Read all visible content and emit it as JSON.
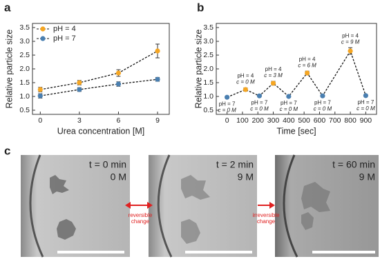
{
  "panel_labels": [
    "a",
    "b",
    "c"
  ],
  "chart_data": [
    {
      "type": "line",
      "xlabel": "Urea concentration [M]",
      "ylabel": "Relative particle size",
      "x": [
        0,
        3,
        6,
        9
      ],
      "xlim": [
        -0.6,
        9.9
      ],
      "xticks": [
        0,
        3,
        6,
        9
      ],
      "ylim": [
        0.5,
        3.5
      ],
      "yticks": [
        0.5,
        {
          "value": 1,
          "label": "1.0"
        },
        1.5,
        {
          "value": 2,
          "label": "2.0"
        },
        2.5,
        {
          "value": 3,
          "label": "3.0"
        },
        3.5
      ],
      "legend": "upper-left",
      "series": [
        {
          "name": "pH = 4",
          "color": "#f5a623",
          "values": [
            1.25,
            1.5,
            1.85,
            2.65
          ],
          "errors": [
            0.08,
            0.08,
            0.12,
            0.25
          ]
        },
        {
          "name": "pH = 7",
          "color": "#4a7fb0",
          "values": [
            1.02,
            1.25,
            1.45,
            1.62
          ],
          "errors": [
            0.08,
            0.07,
            0.08,
            0.07
          ]
        }
      ]
    },
    {
      "type": "line",
      "xlabel": "Time [sec]",
      "ylabel": "Relative particle size",
      "x": [
        0,
        120,
        210,
        300,
        400,
        520,
        620,
        800,
        900
      ],
      "xlim": [
        -70,
        970
      ],
      "xticks": [
        0,
        100,
        200,
        300,
        400,
        500,
        600,
        700,
        800,
        900
      ],
      "ylim": [
        0.5,
        3.5
      ],
      "yticks": [
        0.5,
        {
          "value": 1,
          "label": "1.0"
        },
        1.5,
        {
          "value": 2,
          "label": "2.0"
        },
        2.5,
        {
          "value": 3,
          "label": "3.0"
        },
        3.5
      ],
      "series": [
        {
          "values": [
            0.97,
            1.25,
            1.02,
            1.48,
            1.0,
            1.85,
            1.02,
            2.65,
            1.03
          ],
          "errors": [
            0.03,
            0.06,
            0.03,
            0.07,
            0.03,
            0.07,
            0.03,
            0.12,
            0.03
          ],
          "colors": [
            "#4a7fb0",
            "#f5a623",
            "#4a7fb0",
            "#f5a623",
            "#4a7fb0",
            "#f5a623",
            "#4a7fb0",
            "#f5a623",
            "#4a7fb0"
          ],
          "point_labels": [
            [
              "pH = 7",
              "c = 0 M"
            ],
            [
              "pH = 4",
              "c = 0 M"
            ],
            [
              "pH = 7",
              "c = 0 M"
            ],
            [
              "pH = 4",
              "c = 3 M"
            ],
            [
              "pH = 7",
              "c = 0 M"
            ],
            [
              "pH = 4",
              "c = 6 M"
            ],
            [
              "pH = 7",
              "c = 0 M"
            ],
            [
              "pH = 4",
              "c = 9 M"
            ],
            [
              "pH = 7",
              "c = 0 M"
            ]
          ]
        }
      ]
    }
  ],
  "panel_c": {
    "images": [
      {
        "time": "t = 0 min",
        "conc": "0 M"
      },
      {
        "time": "t = 2 min",
        "conc": "9 M"
      },
      {
        "time": "t = 60 min",
        "conc": "9 M"
      }
    ],
    "transitions": [
      [
        "reversible",
        "change"
      ],
      [
        "irreversible",
        "change"
      ]
    ]
  }
}
